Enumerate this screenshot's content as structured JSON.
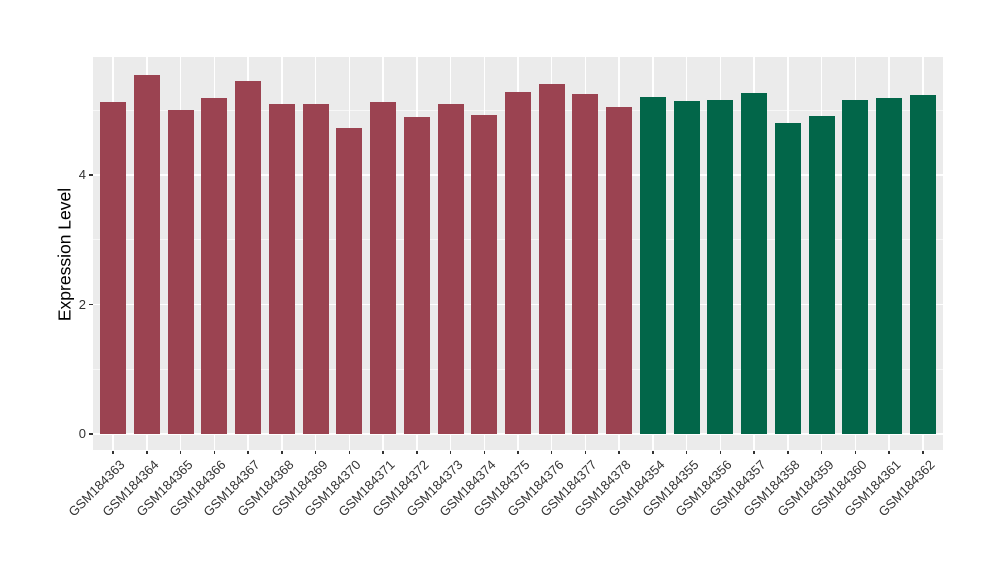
{
  "chart_data": {
    "type": "bar",
    "title": "",
    "xlabel": "",
    "ylabel": "Expression Level",
    "categories": [
      "GSM184363",
      "GSM184364",
      "GSM184365",
      "GSM184366",
      "GSM184367",
      "GSM184368",
      "GSM184369",
      "GSM184370",
      "GSM184371",
      "GSM184372",
      "GSM184373",
      "GSM184374",
      "GSM184375",
      "GSM184376",
      "GSM184377",
      "GSM184378",
      "GSM184354",
      "GSM184355",
      "GSM184356",
      "GSM184357",
      "GSM184358",
      "GSM184359",
      "GSM184360",
      "GSM184361",
      "GSM184362"
    ],
    "values": [
      5.13,
      5.55,
      5.0,
      5.19,
      5.45,
      5.09,
      5.09,
      4.73,
      5.13,
      4.89,
      5.09,
      4.92,
      5.28,
      5.41,
      5.25,
      5.05,
      5.21,
      5.14,
      5.16,
      5.27,
      4.81,
      4.91,
      5.16,
      5.19,
      5.23
    ],
    "bar_colors": [
      "#9B4351",
      "#9B4351",
      "#9B4351",
      "#9B4351",
      "#9B4351",
      "#9B4351",
      "#9B4351",
      "#9B4351",
      "#9B4351",
      "#9B4351",
      "#9B4351",
      "#9B4351",
      "#9B4351",
      "#9B4351",
      "#9B4351",
      "#9B4351",
      "#026649",
      "#026649",
      "#026649",
      "#026649",
      "#026649",
      "#026649",
      "#026649",
      "#026649",
      "#026649"
    ],
    "groups": [
      {
        "name": "maroon-group",
        "color": "#9B4351",
        "first_category": "GSM184363",
        "last_category": "GSM184378",
        "count": 16
      },
      {
        "name": "green-group",
        "color": "#026649",
        "first_category": "GSM184354",
        "last_category": "GSM184362",
        "count": 9
      }
    ],
    "yticks": [
      0,
      2,
      4
    ],
    "yticks_minor": [
      1,
      3,
      5
    ],
    "ylim": [
      0,
      5.82
    ],
    "grid": true,
    "legend_position": "none"
  },
  "style": {
    "panel_bg": "#EBEBEB",
    "grid_major_color": "#FFFFFF",
    "grid_minor_color": "#FFFFFF",
    "tick_color": "#333333",
    "axis_text_color": "#333333",
    "axis_title_color": "#000000",
    "figure_bg": "#FFFFFF"
  }
}
